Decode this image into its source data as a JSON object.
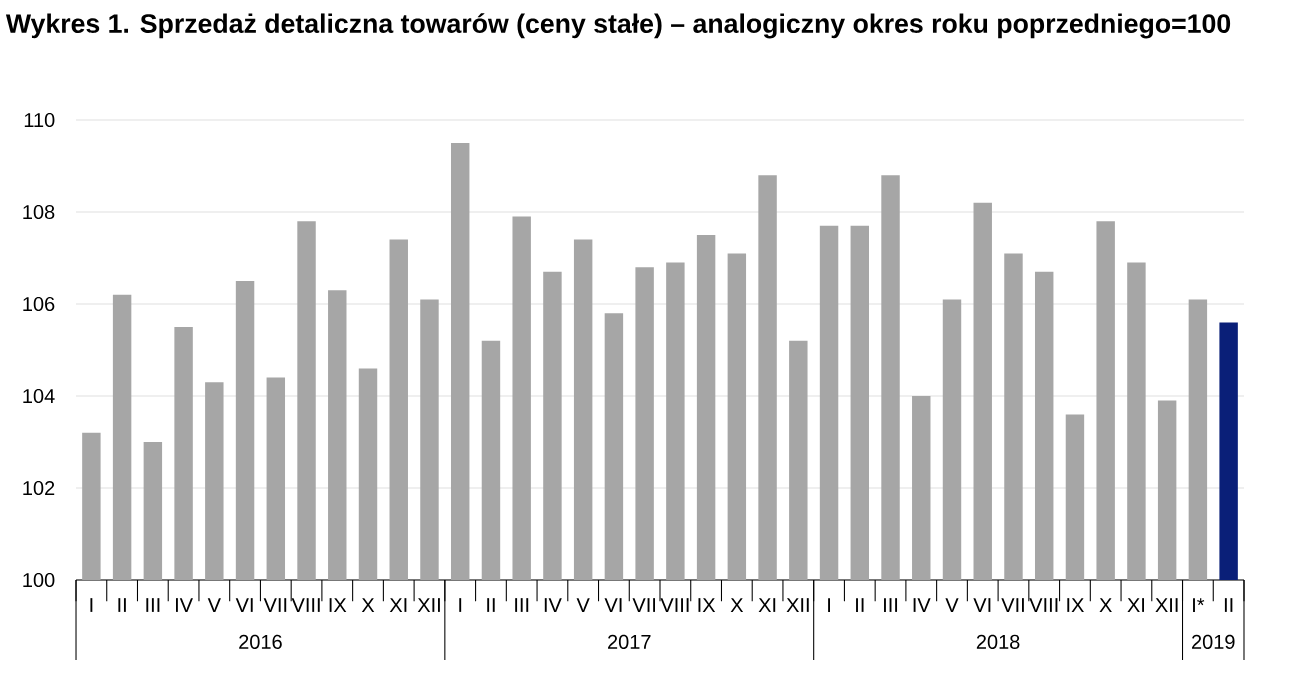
{
  "chart_data": {
    "type": "bar",
    "title": "Wykres 1. Sprzedaż detaliczna towarów (ceny stałe) – analogiczny okres roku poprzedniego=100",
    "categories": [
      "I",
      "II",
      "III",
      "IV",
      "V",
      "VI",
      "VII",
      "VIII",
      "IX",
      "X",
      "XI",
      "XII",
      "I",
      "II",
      "III",
      "IV",
      "V",
      "VI",
      "VII",
      "VIII",
      "IX",
      "X",
      "XI",
      "XII",
      "I",
      "II",
      "III",
      "IV",
      "V",
      "VI",
      "VII",
      "VIII",
      "IX",
      "X",
      "XI",
      "XII",
      "I*",
      "II"
    ],
    "values": [
      103.2,
      106.2,
      103.0,
      105.5,
      104.3,
      106.5,
      104.4,
      107.8,
      106.3,
      104.6,
      107.4,
      106.1,
      109.5,
      105.2,
      107.9,
      106.7,
      107.4,
      105.8,
      106.8,
      106.9,
      107.5,
      107.1,
      108.8,
      105.2,
      107.7,
      107.7,
      108.8,
      104.0,
      106.1,
      108.2,
      107.1,
      106.7,
      103.6,
      107.8,
      106.9,
      103.9,
      106.1,
      105.6
    ],
    "colors": [
      "#a6a6a6",
      "#a6a6a6",
      "#a6a6a6",
      "#a6a6a6",
      "#a6a6a6",
      "#a6a6a6",
      "#a6a6a6",
      "#a6a6a6",
      "#a6a6a6",
      "#a6a6a6",
      "#a6a6a6",
      "#a6a6a6",
      "#a6a6a6",
      "#a6a6a6",
      "#a6a6a6",
      "#a6a6a6",
      "#a6a6a6",
      "#a6a6a6",
      "#a6a6a6",
      "#a6a6a6",
      "#a6a6a6",
      "#a6a6a6",
      "#a6a6a6",
      "#a6a6a6",
      "#a6a6a6",
      "#a6a6a6",
      "#a6a6a6",
      "#a6a6a6",
      "#a6a6a6",
      "#a6a6a6",
      "#a6a6a6",
      "#a6a6a6",
      "#a6a6a6",
      "#a6a6a6",
      "#a6a6a6",
      "#a6a6a6",
      "#a6a6a6",
      "#0a1f78"
    ],
    "ylim": [
      100,
      110
    ],
    "yticks": [
      100,
      102,
      104,
      106,
      108,
      110
    ],
    "grid": "y",
    "annotations": [
      "2016",
      "2017",
      "2018",
      "2019"
    ]
  }
}
